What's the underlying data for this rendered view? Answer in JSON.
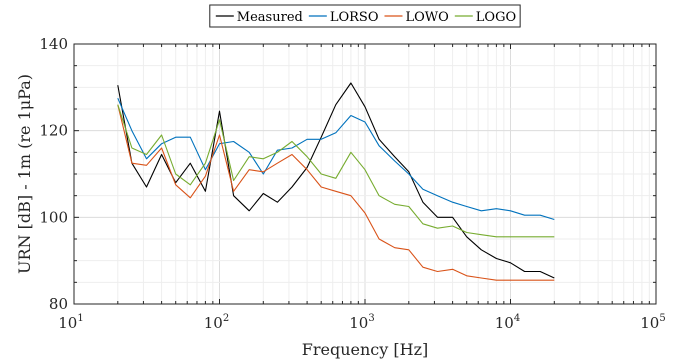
{
  "chart_data": {
    "type": "line",
    "xscale": "log",
    "xlim": [
      10,
      100000
    ],
    "ylim": [
      80,
      140
    ],
    "xlabel": "Frequency [Hz]",
    "ylabel": "URN [dB] - 1m (re 1μPa)",
    "x_ticks": [
      {
        "base": "10",
        "exp": "1",
        "value": 10
      },
      {
        "base": "10",
        "exp": "2",
        "value": 100
      },
      {
        "base": "10",
        "exp": "3",
        "value": 1000
      },
      {
        "base": "10",
        "exp": "4",
        "value": 10000
      },
      {
        "base": "10",
        "exp": "5",
        "value": 100000
      }
    ],
    "y_ticks": [
      {
        "label": "80",
        "value": 80
      },
      {
        "label": "100",
        "value": 100
      },
      {
        "label": "120",
        "value": 120
      },
      {
        "label": "140",
        "value": 140
      }
    ],
    "grid": true,
    "legend_position": "top-center",
    "x": [
      20,
      25,
      31.5,
      40,
      50,
      63,
      80,
      100,
      125,
      160,
      200,
      250,
      315,
      400,
      500,
      630,
      800,
      1000,
      1250,
      1600,
      2000,
      2500,
      3150,
      4000,
      5000,
      6300,
      8000,
      10000,
      12500,
      16000,
      20000
    ],
    "series": [
      {
        "name": "Measured",
        "color": "#000000",
        "values": [
          130.5,
          112.5,
          107.0,
          114.5,
          108.0,
          112.5,
          106.0,
          124.5,
          105.0,
          101.5,
          105.5,
          103.5,
          107.0,
          111.5,
          118.5,
          126.0,
          131.0,
          125.5,
          118.0,
          114.0,
          110.5,
          103.5,
          100.0,
          100.0,
          95.5,
          92.5,
          90.5,
          89.5,
          87.5,
          87.5,
          86.0
        ]
      },
      {
        "name": "LORSO",
        "color": "#0072BD",
        "values": [
          127.5,
          120.0,
          113.5,
          117.0,
          118.5,
          118.5,
          111.0,
          117.0,
          117.5,
          115.0,
          110.0,
          115.5,
          116.0,
          118.0,
          118.0,
          119.5,
          123.5,
          122.0,
          116.5,
          113.0,
          110.0,
          106.5,
          105.0,
          103.5,
          102.5,
          101.5,
          102.0,
          101.5,
          100.5,
          100.5,
          99.5
        ]
      },
      {
        "name": "LOWO",
        "color": "#D95319",
        "values": [
          126.0,
          112.5,
          112.0,
          116.0,
          107.5,
          104.5,
          109.5,
          119.0,
          106.0,
          111.0,
          110.5,
          112.5,
          114.5,
          111.0,
          107.0,
          106.0,
          105.0,
          101.0,
          95.0,
          93.0,
          92.5,
          88.5,
          87.5,
          88.0,
          86.5,
          86.0,
          85.5,
          85.5,
          85.5,
          85.5,
          85.5
        ]
      },
      {
        "name": "LOGO",
        "color": "#77AC30",
        "values": [
          126.0,
          116.0,
          114.5,
          119.0,
          110.0,
          107.5,
          112.5,
          122.5,
          108.5,
          114.0,
          113.5,
          115.0,
          117.5,
          114.0,
          110.0,
          109.0,
          115.0,
          111.0,
          105.0,
          103.0,
          102.5,
          98.5,
          97.5,
          98.0,
          96.5,
          96.0,
          95.5,
          95.5,
          95.5,
          95.5,
          95.5
        ]
      }
    ]
  }
}
